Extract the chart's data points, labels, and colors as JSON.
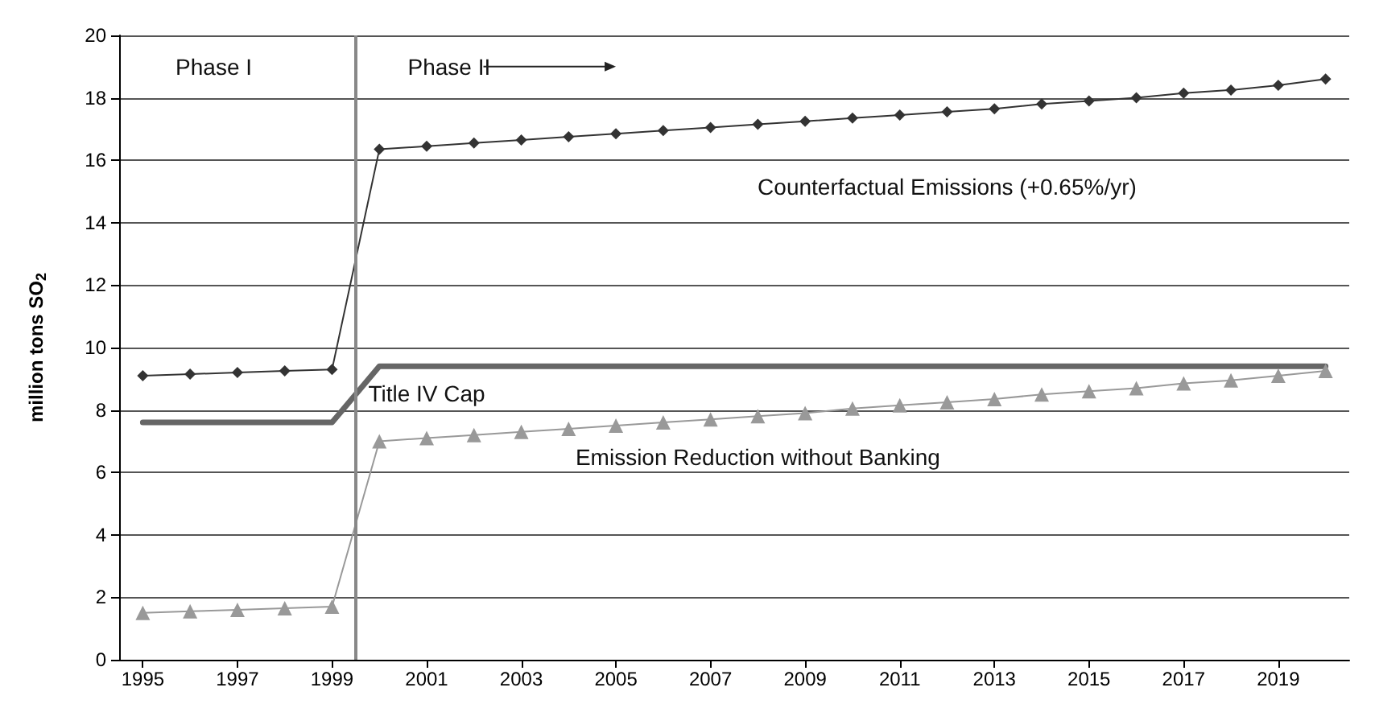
{
  "chart_data": {
    "type": "line",
    "ylabel": "million tons SO$_{2}$",
    "x": [
      1995,
      1996,
      1997,
      1998,
      1999,
      2000,
      2001,
      2002,
      2003,
      2004,
      2005,
      2006,
      2007,
      2008,
      2009,
      2010,
      2011,
      2012,
      2013,
      2014,
      2015,
      2016,
      2017,
      2018,
      2019,
      2020
    ],
    "xlim": [
      1994.5,
      2020.5
    ],
    "xticks": [
      1995,
      1997,
      1999,
      2001,
      2003,
      2005,
      2007,
      2009,
      2011,
      2013,
      2015,
      2017,
      2019
    ],
    "ylim": [
      0,
      20
    ],
    "yticks": [
      0,
      2,
      4,
      6,
      8,
      10,
      12,
      14,
      16,
      18,
      20
    ],
    "grid": "y",
    "legend": false,
    "series": [
      {
        "name": "Counterfactual Emissions (+0.65%/yr)",
        "color": "#333333",
        "marker": "diamond",
        "values": [
          9.1,
          9.15,
          9.2,
          9.25,
          9.3,
          16.35,
          16.45,
          16.55,
          16.65,
          16.75,
          16.85,
          16.95,
          17.05,
          17.15,
          17.25,
          17.35,
          17.45,
          17.55,
          17.65,
          17.8,
          17.9,
          18.0,
          18.15,
          18.25,
          18.4,
          18.6
        ]
      },
      {
        "name": "Title IV Cap",
        "color": "#666666",
        "marker": "none",
        "values": [
          7.6,
          7.6,
          7.6,
          7.6,
          7.6,
          9.4,
          9.4,
          9.4,
          9.4,
          9.4,
          9.4,
          9.4,
          9.4,
          9.4,
          9.4,
          9.4,
          9.4,
          9.4,
          9.4,
          9.4,
          9.4,
          9.4,
          9.4,
          9.4,
          9.4,
          9.4
        ]
      },
      {
        "name": "Emission Reduction without Banking",
        "color": "#999999",
        "marker": "triangle",
        "values": [
          1.5,
          1.55,
          1.6,
          1.65,
          1.7,
          7.0,
          7.1,
          7.2,
          7.3,
          7.4,
          7.5,
          7.6,
          7.7,
          7.8,
          7.9,
          8.05,
          8.15,
          8.25,
          8.35,
          8.5,
          8.6,
          8.7,
          8.85,
          8.95,
          9.1,
          9.25
        ]
      }
    ],
    "ref_lines": [
      {
        "axis": "x",
        "value": 1999.5,
        "label": null,
        "color": "#888888"
      }
    ],
    "annotations": [
      "Phase I",
      "Phase II"
    ]
  }
}
